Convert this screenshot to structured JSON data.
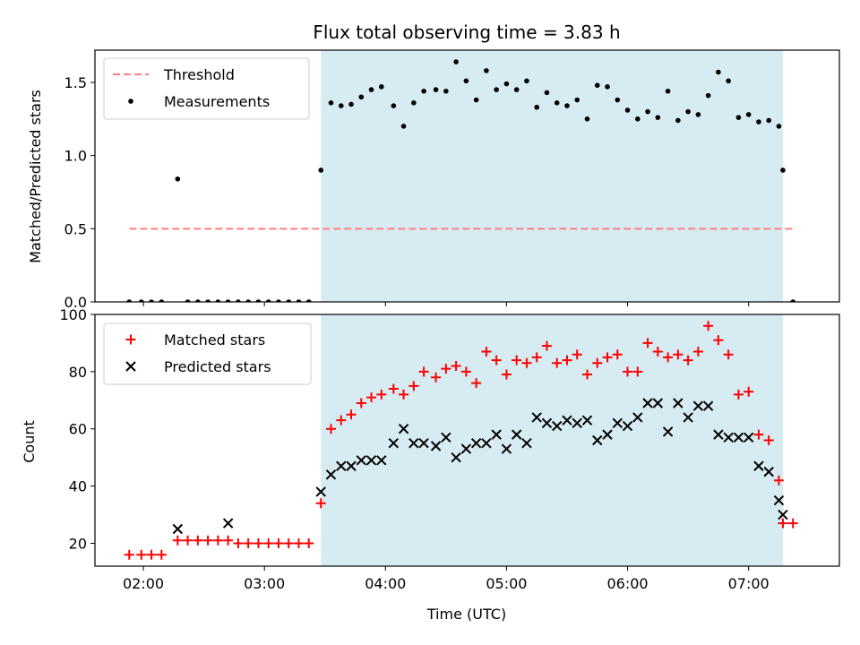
{
  "chart_data": [
    {
      "type": "scatter",
      "title": "Flux total observing time = 3.83 h",
      "ylabel": "Matched/Predicted stars",
      "xlabel": "",
      "xlim": [
        "01:36",
        "07:45"
      ],
      "ylim": [
        0,
        1.72
      ],
      "yticks": [
        0.0,
        0.5,
        1.0,
        1.5
      ],
      "yticklabels": [
        "0.0",
        "0.5",
        "1.0",
        "1.5"
      ],
      "xticks": [
        "02:00",
        "03:00",
        "04:00",
        "05:00",
        "06:00",
        "07:00"
      ],
      "xtick_labels_shown": false,
      "grid": false,
      "legend": "top-left",
      "shaded_region": {
        "start": "03:28",
        "end": "07:17",
        "color": "#add8e6"
      },
      "threshold": {
        "label": "Threshold",
        "y": 0.5,
        "x_start": "01:53",
        "x_end": "07:22",
        "color": "#ff7f7f",
        "style": "dashed"
      },
      "series": [
        {
          "name": "Measurements",
          "color": "#000000",
          "marker": "dot",
          "points": [
            [
              "01:53",
              0
            ],
            [
              "01:59",
              0
            ],
            [
              "02:04",
              0
            ],
            [
              "02:09",
              0
            ],
            [
              "02:17",
              0.84
            ],
            [
              "02:22",
              0
            ],
            [
              "02:27",
              0
            ],
            [
              "02:32",
              0
            ],
            [
              "02:37",
              0
            ],
            [
              "02:42",
              0
            ],
            [
              "02:47",
              0
            ],
            [
              "02:52",
              0
            ],
            [
              "02:57",
              0
            ],
            [
              "03:02",
              0
            ],
            [
              "03:07",
              0
            ],
            [
              "03:12",
              0
            ],
            [
              "03:17",
              0
            ],
            [
              "03:22",
              0
            ],
            [
              "03:28",
              0.9
            ],
            [
              "03:33",
              1.36
            ],
            [
              "03:38",
              1.34
            ],
            [
              "03:43",
              1.35
            ],
            [
              "03:48",
              1.4
            ],
            [
              "03:53",
              1.45
            ],
            [
              "03:58",
              1.47
            ],
            [
              "04:04",
              1.34
            ],
            [
              "04:09",
              1.2
            ],
            [
              "04:14",
              1.36
            ],
            [
              "04:19",
              1.44
            ],
            [
              "04:25",
              1.45
            ],
            [
              "04:30",
              1.44
            ],
            [
              "04:35",
              1.64
            ],
            [
              "04:40",
              1.51
            ],
            [
              "04:45",
              1.38
            ],
            [
              "04:50",
              1.58
            ],
            [
              "04:55",
              1.45
            ],
            [
              "05:00",
              1.49
            ],
            [
              "05:05",
              1.45
            ],
            [
              "05:10",
              1.51
            ],
            [
              "05:15",
              1.33
            ],
            [
              "05:20",
              1.43
            ],
            [
              "05:25",
              1.36
            ],
            [
              "05:30",
              1.34
            ],
            [
              "05:35",
              1.38
            ],
            [
              "05:40",
              1.25
            ],
            [
              "05:45",
              1.48
            ],
            [
              "05:50",
              1.47
            ],
            [
              "05:55",
              1.38
            ],
            [
              "06:00",
              1.31
            ],
            [
              "06:05",
              1.25
            ],
            [
              "06:10",
              1.3
            ],
            [
              "06:15",
              1.26
            ],
            [
              "06:20",
              1.44
            ],
            [
              "06:25",
              1.24
            ],
            [
              "06:30",
              1.3
            ],
            [
              "06:35",
              1.28
            ],
            [
              "06:40",
              1.41
            ],
            [
              "06:45",
              1.57
            ],
            [
              "06:50",
              1.51
            ],
            [
              "06:55",
              1.26
            ],
            [
              "07:00",
              1.28
            ],
            [
              "07:05",
              1.23
            ],
            [
              "07:10",
              1.24
            ],
            [
              "07:15",
              1.2
            ],
            [
              "07:17",
              0.9
            ],
            [
              "07:22",
              0
            ]
          ]
        }
      ]
    },
    {
      "type": "scatter",
      "title": "",
      "ylabel": "Count",
      "xlabel": "Time (UTC)",
      "xlim": [
        "01:36",
        "07:45"
      ],
      "ylim": [
        12,
        100
      ],
      "yticks": [
        20,
        40,
        60,
        80,
        100
      ],
      "yticklabels": [
        "20",
        "40",
        "60",
        "80",
        "100"
      ],
      "xticks": [
        "02:00",
        "03:00",
        "04:00",
        "05:00",
        "06:00",
        "07:00"
      ],
      "xticklabels": [
        "02:00",
        "03:00",
        "04:00",
        "05:00",
        "06:00",
        "07:00"
      ],
      "grid": false,
      "legend": "top-left",
      "shaded_region": {
        "start": "03:28",
        "end": "07:17",
        "color": "#add8e6"
      },
      "series": [
        {
          "name": "Matched stars",
          "color": "#ff0000",
          "marker": "plus",
          "points": [
            [
              "01:53",
              16
            ],
            [
              "01:59",
              16
            ],
            [
              "02:04",
              16
            ],
            [
              "02:09",
              16
            ],
            [
              "02:17",
              21
            ],
            [
              "02:22",
              21
            ],
            [
              "02:27",
              21
            ],
            [
              "02:32",
              21
            ],
            [
              "02:37",
              21
            ],
            [
              "02:42",
              21
            ],
            [
              "02:47",
              20
            ],
            [
              "02:52",
              20
            ],
            [
              "02:57",
              20
            ],
            [
              "03:02",
              20
            ],
            [
              "03:07",
              20
            ],
            [
              "03:12",
              20
            ],
            [
              "03:17",
              20
            ],
            [
              "03:22",
              20
            ],
            [
              "03:28",
              34
            ],
            [
              "03:33",
              60
            ],
            [
              "03:38",
              63
            ],
            [
              "03:43",
              65
            ],
            [
              "03:48",
              69
            ],
            [
              "03:53",
              71
            ],
            [
              "03:58",
              72
            ],
            [
              "04:04",
              74
            ],
            [
              "04:09",
              72
            ],
            [
              "04:14",
              75
            ],
            [
              "04:19",
              80
            ],
            [
              "04:25",
              78
            ],
            [
              "04:30",
              81
            ],
            [
              "04:35",
              82
            ],
            [
              "04:40",
              80
            ],
            [
              "04:45",
              76
            ],
            [
              "04:50",
              87
            ],
            [
              "04:55",
              84
            ],
            [
              "05:00",
              79
            ],
            [
              "05:05",
              84
            ],
            [
              "05:10",
              83
            ],
            [
              "05:15",
              85
            ],
            [
              "05:20",
              89
            ],
            [
              "05:25",
              83
            ],
            [
              "05:30",
              84
            ],
            [
              "05:35",
              86
            ],
            [
              "05:40",
              79
            ],
            [
              "05:45",
              83
            ],
            [
              "05:50",
              85
            ],
            [
              "05:55",
              86
            ],
            [
              "06:00",
              80
            ],
            [
              "06:05",
              80
            ],
            [
              "06:10",
              90
            ],
            [
              "06:15",
              87
            ],
            [
              "06:20",
              85
            ],
            [
              "06:25",
              86
            ],
            [
              "06:30",
              84
            ],
            [
              "06:35",
              87
            ],
            [
              "06:40",
              96
            ],
            [
              "06:45",
              91
            ],
            [
              "06:50",
              86
            ],
            [
              "06:55",
              72
            ],
            [
              "07:00",
              73
            ],
            [
              "07:05",
              58
            ],
            [
              "07:10",
              56
            ],
            [
              "07:15",
              42
            ],
            [
              "07:17",
              27
            ],
            [
              "07:22",
              27
            ]
          ]
        },
        {
          "name": "Predicted stars",
          "color": "#000000",
          "marker": "x",
          "points": [
            [
              "02:17",
              25
            ],
            [
              "02:42",
              27
            ],
            [
              "03:28",
              38
            ],
            [
              "03:33",
              44
            ],
            [
              "03:38",
              47
            ],
            [
              "03:43",
              47
            ],
            [
              "03:48",
              49
            ],
            [
              "03:53",
              49
            ],
            [
              "03:58",
              49
            ],
            [
              "04:04",
              55
            ],
            [
              "04:09",
              60
            ],
            [
              "04:14",
              55
            ],
            [
              "04:19",
              55
            ],
            [
              "04:25",
              54
            ],
            [
              "04:30",
              57
            ],
            [
              "04:35",
              50
            ],
            [
              "04:40",
              53
            ],
            [
              "04:45",
              55
            ],
            [
              "04:50",
              55
            ],
            [
              "04:55",
              58
            ],
            [
              "05:00",
              53
            ],
            [
              "05:05",
              58
            ],
            [
              "05:10",
              55
            ],
            [
              "05:15",
              64
            ],
            [
              "05:20",
              62
            ],
            [
              "05:25",
              61
            ],
            [
              "05:30",
              63
            ],
            [
              "05:35",
              62
            ],
            [
              "05:40",
              63
            ],
            [
              "05:45",
              56
            ],
            [
              "05:50",
              58
            ],
            [
              "05:55",
              62
            ],
            [
              "06:00",
              61
            ],
            [
              "06:05",
              64
            ],
            [
              "06:10",
              69
            ],
            [
              "06:15",
              69
            ],
            [
              "06:20",
              59
            ],
            [
              "06:25",
              69
            ],
            [
              "06:30",
              64
            ],
            [
              "06:35",
              68
            ],
            [
              "06:40",
              68
            ],
            [
              "06:45",
              58
            ],
            [
              "06:50",
              57
            ],
            [
              "06:55",
              57
            ],
            [
              "07:00",
              57
            ],
            [
              "07:05",
              47
            ],
            [
              "07:10",
              45
            ],
            [
              "07:15",
              35
            ],
            [
              "07:17",
              30
            ]
          ]
        }
      ]
    }
  ]
}
